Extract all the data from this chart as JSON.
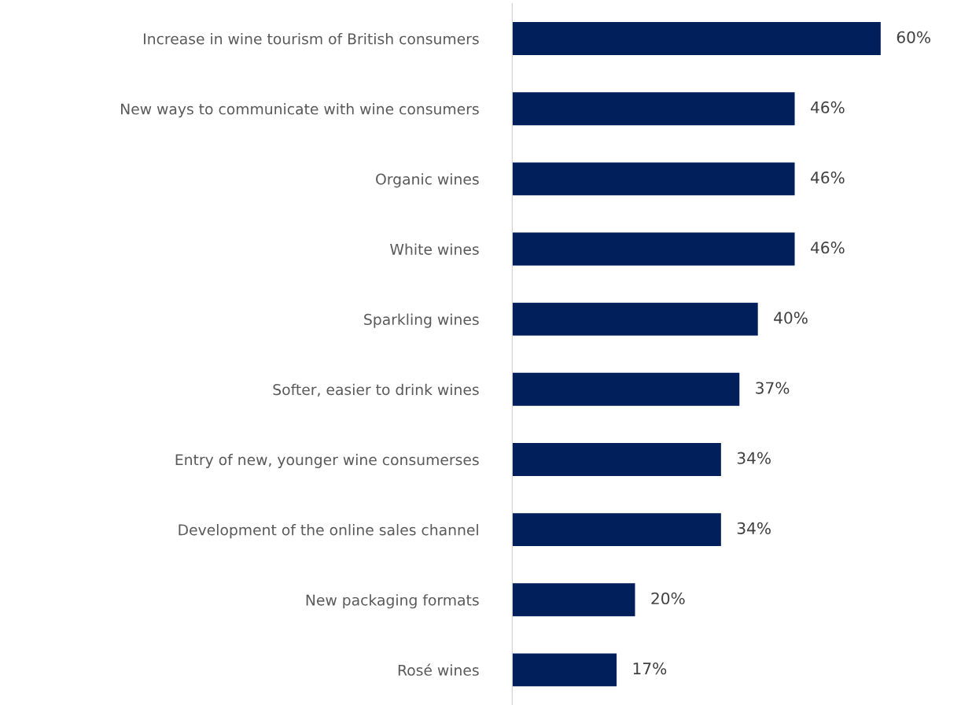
{
  "chart_data": {
    "type": "bar",
    "orientation": "horizontal",
    "categories": [
      "Increase in wine tourism of British consumers",
      "New ways to communicate with wine consumers",
      "Organic wines",
      "White wines",
      "Sparkling wines",
      "Softer, easier to drink wines",
      "Entry of new, younger wine consumerses",
      "Development of the online sales channel",
      "New packaging formats",
      "Rosé wines"
    ],
    "values": [
      60,
      46,
      46,
      46,
      40,
      37,
      34,
      34,
      20,
      17
    ],
    "value_labels": [
      "60%",
      "46%",
      "46%",
      "46%",
      "40%",
      "37%",
      "34%",
      "34%",
      "20%",
      "17%"
    ],
    "color": "#001f5b",
    "grid": false,
    "legend": false
  }
}
